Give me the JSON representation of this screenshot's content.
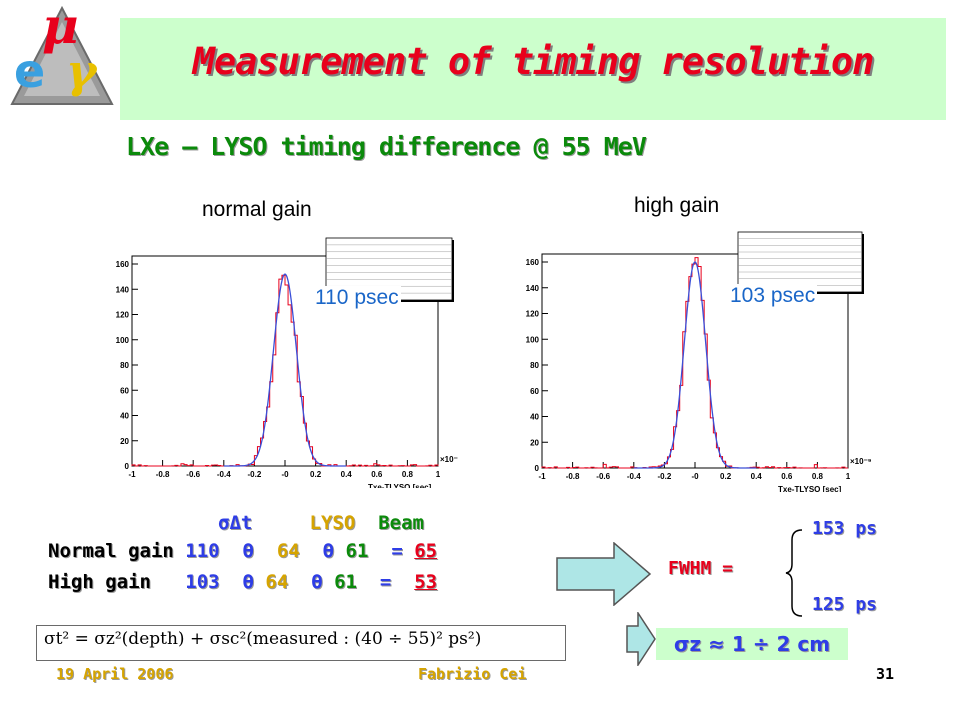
{
  "title": "Measurement of timing resolution",
  "subtitle": "LXe – LYSO timing difference @ 55 MeV",
  "logo": {
    "mu": "μ",
    "e": "e",
    "gamma": "γ"
  },
  "plots": {
    "left": {
      "caption": "normal gain",
      "resolution_label": "110 psec",
      "y_ticks": [
        "160",
        "140",
        "120",
        "100",
        "80",
        "60",
        "40",
        "20",
        "0"
      ],
      "x_ticks": [
        "-1",
        "-0.8",
        "-0.6",
        "-0.4",
        "-0.2",
        "-0",
        "0.2",
        "0.4",
        "0.6",
        "0.8",
        "1"
      ],
      "x_exp": "×10⁻⁹",
      "x_label": "Txe-TLYSO [sec]"
    },
    "right": {
      "caption": "high gain",
      "resolution_label": "103 psec",
      "y_ticks": [
        "160",
        "140",
        "120",
        "100",
        "80",
        "60",
        "40",
        "20",
        "0"
      ],
      "x_ticks": [
        "-1",
        "-0.8",
        "-0.6",
        "-0.4",
        "-0.2",
        "-0",
        "0.2",
        "0.4",
        "0.6",
        "0.8",
        "1"
      ],
      "x_exp": "×10⁻⁹",
      "x_label": "Txe-TLYSO [sec]"
    }
  },
  "table": {
    "header": {
      "sigma": "σΔt",
      "lyso": "LYSO",
      "beam": "Beam"
    },
    "rows": [
      {
        "label": "Normal gain",
        "total": "110",
        "op1": "ϴ",
        "lyso": "64",
        "op2": "ϴ",
        "beam": "61",
        "eq": "=",
        "result": "65"
      },
      {
        "label": "High gain",
        "total": "103",
        "op1": "ϴ",
        "lyso": "64",
        "op2": "ϴ",
        "beam": "61",
        "eq": "=",
        "result": "53"
      }
    ]
  },
  "fwhm": {
    "label": "FWHM =",
    "upper": "153 ps",
    "lower": "125 ps"
  },
  "sigma_z": "σz ≈ 1 ÷ 2 cm",
  "formula": "σt² = σz²(depth) + σsc²(measured : (40 ÷ 55)² ps²)",
  "footer": {
    "date": "19 April 2006",
    "author": "Fabrizio Cei",
    "page": "31"
  },
  "colors": {
    "title": "#e8001c",
    "band": "#ccffcc",
    "subtitle": "#0b8a0b",
    "histogram": "#e8001c",
    "fit": "#3a4fd8",
    "arrow": "#aee6e6"
  }
}
